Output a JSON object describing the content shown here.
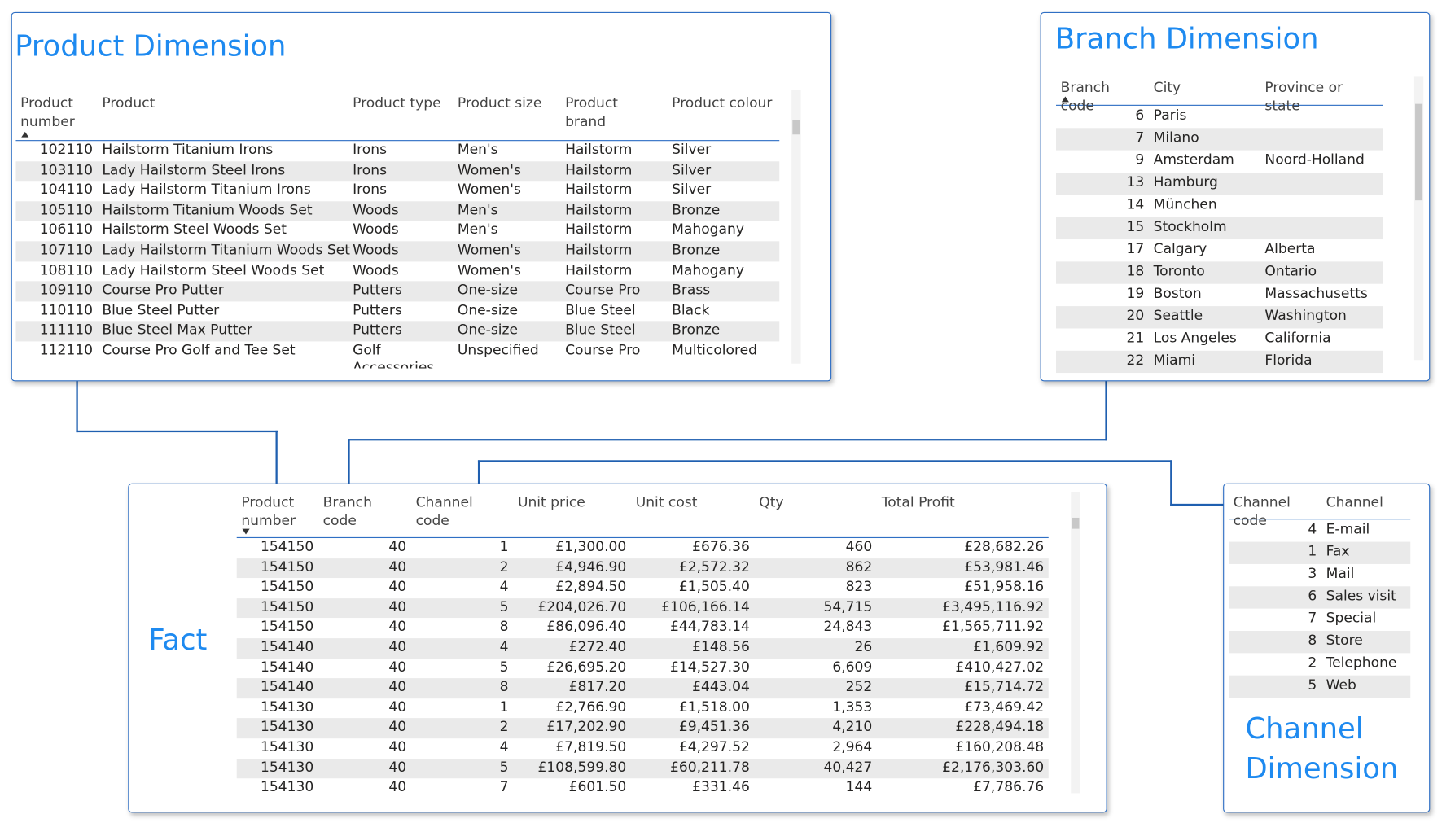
{
  "product": {
    "title": "Product Dimension",
    "columns": [
      "Product number",
      "Product",
      "Product type",
      "Product size",
      "Product brand",
      "Product colour"
    ],
    "rows": [
      [
        "102110",
        "Hailstorm Titanium Irons",
        "Irons",
        "Men's",
        "Hailstorm",
        "Silver"
      ],
      [
        "103110",
        "Lady Hailstorm Steel Irons",
        "Irons",
        "Women's",
        "Hailstorm",
        "Silver"
      ],
      [
        "104110",
        "Lady Hailstorm Titanium Irons",
        "Irons",
        "Women's",
        "Hailstorm",
        "Silver"
      ],
      [
        "105110",
        "Hailstorm Titanium Woods Set",
        "Woods",
        "Men's",
        "Hailstorm",
        "Bronze"
      ],
      [
        "106110",
        "Hailstorm Steel Woods Set",
        "Woods",
        "Men's",
        "Hailstorm",
        "Mahogany"
      ],
      [
        "107110",
        "Lady Hailstorm Titanium Woods Set",
        "Woods",
        "Women's",
        "Hailstorm",
        "Bronze"
      ],
      [
        "108110",
        "Lady Hailstorm Steel Woods Set",
        "Woods",
        "Women's",
        "Hailstorm",
        "Mahogany"
      ],
      [
        "109110",
        "Course Pro Putter",
        "Putters",
        "One-size",
        "Course Pro",
        "Brass"
      ],
      [
        "110110",
        "Blue Steel Putter",
        "Putters",
        "One-size",
        "Blue Steel",
        "Black"
      ],
      [
        "111110",
        "Blue Steel Max Putter",
        "Putters",
        "One-size",
        "Blue Steel",
        "Bronze"
      ],
      [
        "112110",
        "Course Pro Golf and Tee Set",
        "Golf Accessories",
        "Unspecified",
        "Course Pro",
        "Multicolored"
      ]
    ]
  },
  "branch": {
    "title": "Branch Dimension",
    "columns": [
      "Branch code",
      "City",
      "Province or state"
    ],
    "rows": [
      [
        "6",
        "Paris",
        ""
      ],
      [
        "7",
        "Milano",
        ""
      ],
      [
        "9",
        "Amsterdam",
        "Noord-Holland"
      ],
      [
        "13",
        "Hamburg",
        ""
      ],
      [
        "14",
        "München",
        ""
      ],
      [
        "15",
        "Stockholm",
        ""
      ],
      [
        "17",
        "Calgary",
        "Alberta"
      ],
      [
        "18",
        "Toronto",
        "Ontario"
      ],
      [
        "19",
        "Boston",
        "Massachusetts"
      ],
      [
        "20",
        "Seattle",
        "Washington"
      ],
      [
        "21",
        "Los Angeles",
        "California"
      ],
      [
        "22",
        "Miami",
        "Florida"
      ]
    ]
  },
  "fact": {
    "title": "Fact",
    "columns": [
      "Product number",
      "Branch code",
      "Channel code",
      "Unit price",
      "Unit cost",
      "Qty",
      "Total Profit"
    ],
    "rows": [
      [
        "154150",
        "40",
        "1",
        "£1,300.00",
        "£676.36",
        "460",
        "£28,682.26"
      ],
      [
        "154150",
        "40",
        "2",
        "£4,946.90",
        "£2,572.32",
        "862",
        "£53,981.46"
      ],
      [
        "154150",
        "40",
        "4",
        "£2,894.50",
        "£1,505.40",
        "823",
        "£51,958.16"
      ],
      [
        "154150",
        "40",
        "5",
        "£204,026.70",
        "£106,166.14",
        "54,715",
        "£3,495,116.92"
      ],
      [
        "154150",
        "40",
        "8",
        "£86,096.40",
        "£44,783.14",
        "24,843",
        "£1,565,711.92"
      ],
      [
        "154140",
        "40",
        "4",
        "£272.40",
        "£148.56",
        "26",
        "£1,609.92"
      ],
      [
        "154140",
        "40",
        "5",
        "£26,695.20",
        "£14,527.30",
        "6,609",
        "£410,427.02"
      ],
      [
        "154140",
        "40",
        "8",
        "£817.20",
        "£443.04",
        "252",
        "£15,714.72"
      ],
      [
        "154130",
        "40",
        "1",
        "£2,766.90",
        "£1,518.00",
        "1,353",
        "£73,469.42"
      ],
      [
        "154130",
        "40",
        "2",
        "£17,202.90",
        "£9,451.36",
        "4,210",
        "£228,494.18"
      ],
      [
        "154130",
        "40",
        "4",
        "£7,819.50",
        "£4,297.52",
        "2,964",
        "£160,208.48"
      ],
      [
        "154130",
        "40",
        "5",
        "£108,599.80",
        "£60,211.78",
        "40,427",
        "£2,176,303.60"
      ],
      [
        "154130",
        "40",
        "7",
        "£601.50",
        "£331.46",
        "144",
        "£7,786.76"
      ]
    ]
  },
  "channel": {
    "title": "Channel Dimension",
    "columns": [
      "Channel code",
      "Channel"
    ],
    "rows": [
      [
        "4",
        "E-mail"
      ],
      [
        "1",
        "Fax"
      ],
      [
        "3",
        "Mail"
      ],
      [
        "6",
        "Sales visit"
      ],
      [
        "7",
        "Special"
      ],
      [
        "8",
        "Store"
      ],
      [
        "2",
        "Telephone"
      ],
      [
        "5",
        "Web"
      ]
    ]
  }
}
